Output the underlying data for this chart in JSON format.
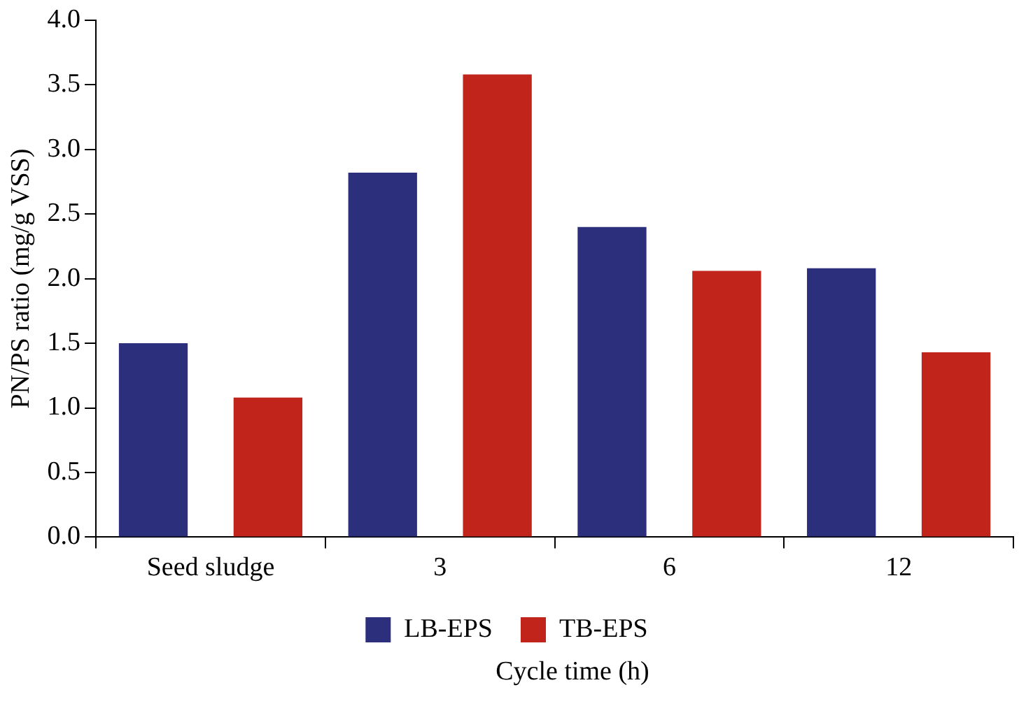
{
  "chart_data": {
    "type": "bar",
    "categories": [
      "Seed sludge",
      "3",
      "6",
      "12"
    ],
    "series": [
      {
        "name": "LB-EPS",
        "color": "#2b2f7c",
        "values": [
          1.5,
          2.82,
          2.4,
          2.08
        ]
      },
      {
        "name": "TB-EPS",
        "color": "#c0241b",
        "values": [
          1.08,
          3.58,
          2.06,
          1.43
        ]
      }
    ],
    "ylim": [
      0,
      4
    ],
    "yticks": [
      {
        "value": 0,
        "label": "0.0"
      },
      {
        "value": 0.5,
        "label": "0.5"
      },
      {
        "value": 1,
        "label": "1.0"
      },
      {
        "value": 1.5,
        "label": "1.5"
      },
      {
        "value": 2,
        "label": "2.0"
      },
      {
        "value": 2.5,
        "label": "2.5"
      },
      {
        "value": 3,
        "label": "3.0"
      },
      {
        "value": 3.5,
        "label": "3.5"
      },
      {
        "value": 4,
        "label": "4.0"
      }
    ],
    "ylabel": "PN/PS ratio (mg/g VSS)",
    "xlabel": "Cycle time (h)",
    "legend": "bottom",
    "grid": false
  }
}
